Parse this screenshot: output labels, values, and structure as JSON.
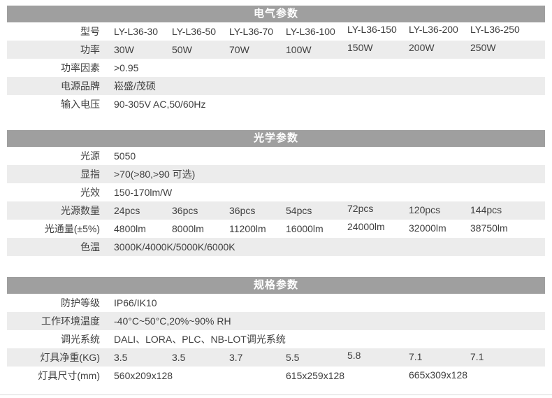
{
  "colors": {
    "header_bg": "#9f9f9f",
    "header_text": "#ffffff",
    "row_alt_bg": "#ececec",
    "text": "#3f3f3f"
  },
  "sections": [
    {
      "title": "电气参数",
      "rows": [
        {
          "label": "型号",
          "shaded": false,
          "values": [
            "LY-L36-30",
            "LY-L36-50",
            "LY-L36-70",
            "LY-L36-100",
            "LY-L36-150",
            "LY-L36-200",
            "LY-L36-250"
          ]
        },
        {
          "label": "功率",
          "shaded": true,
          "values": [
            "30W",
            "50W",
            "70W",
            "100W",
            "150W",
            "200W",
            "250W"
          ]
        },
        {
          "label": "功率因素",
          "shaded": false,
          "values": [
            ">0.95"
          ]
        },
        {
          "label": "电源品牌",
          "shaded": true,
          "values": [
            "崧盛/茂硕"
          ]
        },
        {
          "label": "输入电压",
          "shaded": false,
          "values": [
            "90-305V AC,50/60Hz"
          ]
        }
      ]
    },
    {
      "title": "光学参数",
      "rows": [
        {
          "label": "光源",
          "shaded": false,
          "values": [
            "5050"
          ]
        },
        {
          "label": "显指",
          "shaded": true,
          "values": [
            ">70(>80,>90 可选)"
          ]
        },
        {
          "label": "光效",
          "shaded": false,
          "values": [
            "150-170lm/W"
          ]
        },
        {
          "label": "光源数量",
          "shaded": true,
          "values": [
            "24pcs",
            "36pcs",
            "36pcs",
            "54pcs",
            "72pcs",
            "120pcs",
            "144pcs"
          ]
        },
        {
          "label": "光通量(±5%)",
          "shaded": false,
          "values": [
            "4800lm",
            "8000lm",
            "11200lm",
            "16000lm",
            "24000lm",
            "32000lm",
            "38750lm"
          ]
        },
        {
          "label": "色温",
          "shaded": true,
          "values": [
            "3000K/4000K/5000K/6000K"
          ]
        }
      ]
    },
    {
      "title": "规格参数",
      "rows": [
        {
          "label": "防护等级",
          "shaded": false,
          "values": [
            "IP66/IK10"
          ]
        },
        {
          "label": "工作环境温度",
          "shaded": true,
          "values": [
            "-40°C~50°C,20%~90% RH"
          ]
        },
        {
          "label": "调光系统",
          "shaded": false,
          "values": [
            "DALI、LORA、PLC、NB-LOT调光系统"
          ]
        },
        {
          "label": "灯具净重(KG)",
          "shaded": true,
          "values": [
            "3.5",
            "3.5",
            "3.7",
            "5.5",
            "5.8",
            "7.1",
            "7.1"
          ]
        },
        {
          "label": "灯具尺寸(mm)",
          "shaded": false,
          "values": [
            "560x209x128",
            "",
            "",
            "615x259x128",
            "",
            "665x309x128",
            ""
          ]
        }
      ]
    }
  ]
}
